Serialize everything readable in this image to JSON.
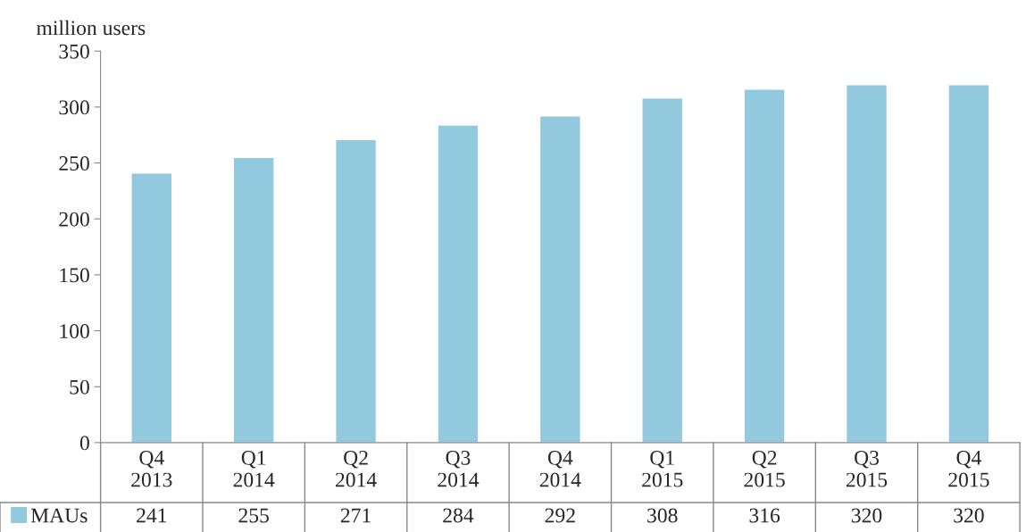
{
  "chart_data": {
    "type": "bar",
    "ylabel": "million users",
    "categories": [
      "Q4\n2013",
      "Q1\n2014",
      "Q2\n2014",
      "Q3\n2014",
      "Q4\n2014",
      "Q1\n2015",
      "Q2\n2015",
      "Q3\n2015",
      "Q4\n2015"
    ],
    "series": [
      {
        "name": "MAUs",
        "color": "#93c9df",
        "values": [
          241,
          255,
          271,
          284,
          292,
          308,
          316,
          320,
          320
        ]
      }
    ],
    "ylim": [
      0,
      350
    ],
    "yticks": [
      0,
      50,
      100,
      150,
      200,
      250,
      300,
      350
    ],
    "grid": false,
    "legend": "bottom",
    "data_labels": true
  }
}
